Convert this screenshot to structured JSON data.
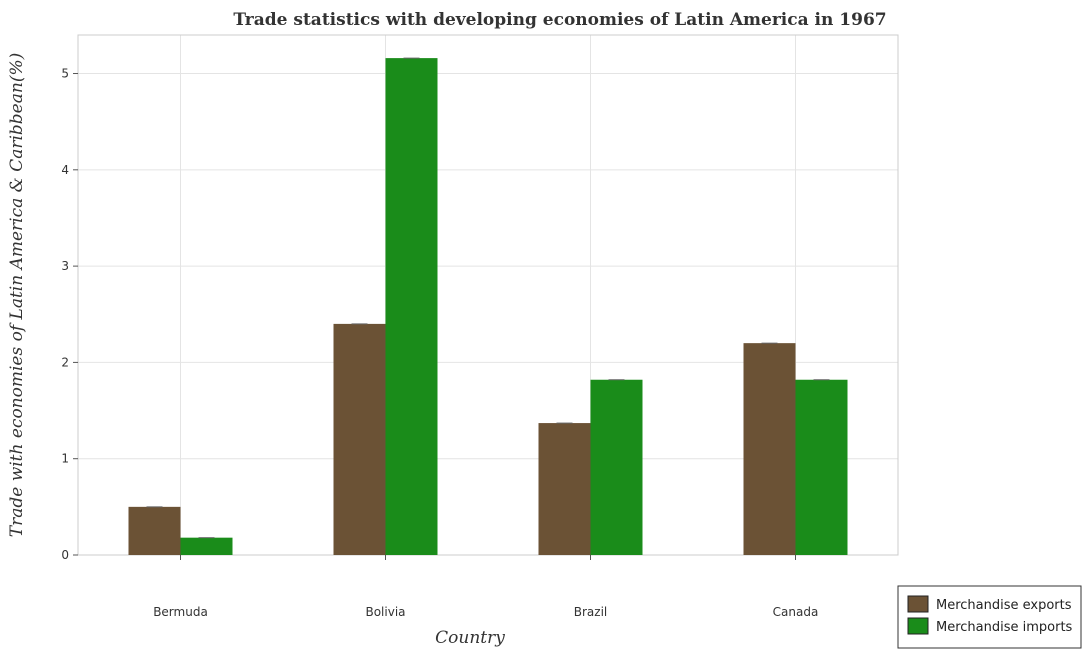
{
  "chart_data": {
    "type": "bar",
    "title": "Trade statistics with developing economies of Latin America in 1967",
    "xlabel": "Country",
    "ylabel": "Trade with economies of Latin America & Caribbean(%)",
    "categories": [
      "Bermuda",
      "Bolivia",
      "Brazil",
      "Canada"
    ],
    "series": [
      {
        "name": "Merchandise exports",
        "color": "#6b5235",
        "values": [
          0.5,
          2.4,
          1.37,
          2.2
        ]
      },
      {
        "name": "Merchandise imports",
        "color": "#1a8c1a",
        "values": [
          0.18,
          5.16,
          1.82,
          1.82
        ]
      }
    ],
    "ylim": [
      0,
      5.4
    ],
    "yticks": [
      0,
      1,
      2,
      3,
      4,
      5
    ],
    "grid": true,
    "legend_position": "bottom-right"
  }
}
